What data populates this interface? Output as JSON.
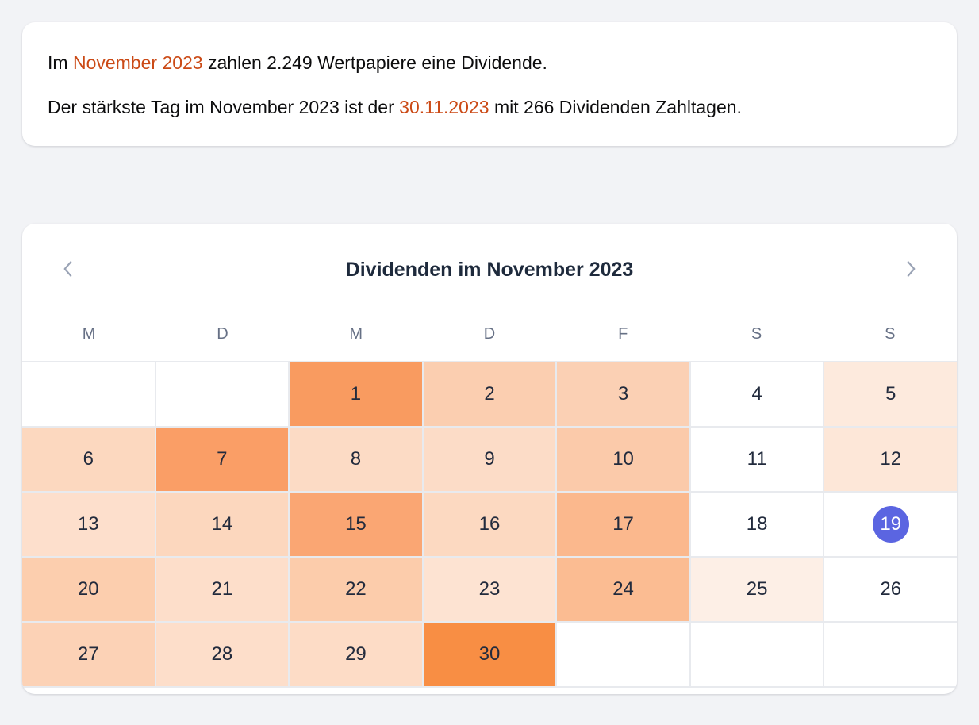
{
  "theme": {
    "page_bg": "#f2f3f6",
    "card_bg": "#ffffff",
    "highlight_color": "#cb4a16",
    "text_color": "#0c0c0d",
    "title_color": "#1e2a3c",
    "weekday_color": "#667085",
    "day_color": "#222b3d",
    "grid_line_color": "#e8eaee",
    "today_bg": "#5b65e1",
    "today_text": "#ffffff",
    "chevron_color": "#9aa3b5"
  },
  "summary": {
    "line1_pre": "Im ",
    "line1_highlight": "November 2023",
    "line1_post": " zahlen 2.249 Wertpapiere eine Dividende.",
    "line2_pre": "Der stärkste Tag im November 2023 ist der ",
    "line2_highlight": "30.11.2023",
    "line2_post": " mit 266 Dividenden Zahltagen."
  },
  "calendar": {
    "title": "Dividenden im November 2023",
    "prev_icon": "chevron-left-icon",
    "next_icon": "chevron-right-icon",
    "weekdays": [
      "M",
      "D",
      "M",
      "D",
      "F",
      "S",
      "S"
    ],
    "today_day": "19",
    "cells": [
      {
        "day": "",
        "bg": "#ffffff"
      },
      {
        "day": "",
        "bg": "#ffffff"
      },
      {
        "day": "1",
        "bg": "#f99b60"
      },
      {
        "day": "2",
        "bg": "#fbceb0"
      },
      {
        "day": "3",
        "bg": "#fbd0b4"
      },
      {
        "day": "4",
        "bg": "#ffffff"
      },
      {
        "day": "5",
        "bg": "#fdeadd"
      },
      {
        "day": "6",
        "bg": "#fcd8bf"
      },
      {
        "day": "7",
        "bg": "#fa9e66"
      },
      {
        "day": "8",
        "bg": "#fcdbc5"
      },
      {
        "day": "9",
        "bg": "#fcdcc7"
      },
      {
        "day": "10",
        "bg": "#fbcaaa"
      },
      {
        "day": "11",
        "bg": "#ffffff"
      },
      {
        "day": "12",
        "bg": "#fde7d8"
      },
      {
        "day": "13",
        "bg": "#fddfcc"
      },
      {
        "day": "14",
        "bg": "#fcd7be"
      },
      {
        "day": "15",
        "bg": "#faa673"
      },
      {
        "day": "16",
        "bg": "#fcd9c1"
      },
      {
        "day": "17",
        "bg": "#fbb88d"
      },
      {
        "day": "18",
        "bg": "#ffffff"
      },
      {
        "day": "19",
        "bg": "#ffffff",
        "today": true
      },
      {
        "day": "20",
        "bg": "#fcceae"
      },
      {
        "day": "21",
        "bg": "#fddeca"
      },
      {
        "day": "22",
        "bg": "#fcccab"
      },
      {
        "day": "23",
        "bg": "#fde3d2"
      },
      {
        "day": "24",
        "bg": "#fbbc92"
      },
      {
        "day": "25",
        "bg": "#fdefe6"
      },
      {
        "day": "26",
        "bg": "#ffffff"
      },
      {
        "day": "27",
        "bg": "#fcd2b6"
      },
      {
        "day": "28",
        "bg": "#fddeca"
      },
      {
        "day": "29",
        "bg": "#fddcc6"
      },
      {
        "day": "30",
        "bg": "#f88e44"
      },
      {
        "day": "",
        "bg": "#ffffff"
      },
      {
        "day": "",
        "bg": "#ffffff"
      },
      {
        "day": "",
        "bg": "#ffffff"
      }
    ]
  }
}
